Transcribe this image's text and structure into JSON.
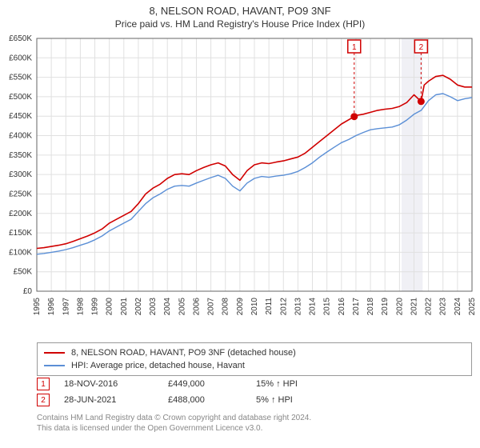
{
  "header": {
    "title": "8, NELSON ROAD, HAVANT, PO9 3NF",
    "subtitle": "Price paid vs. HM Land Registry's House Price Index (HPI)"
  },
  "chart": {
    "type": "line",
    "plot_background": "#ffffff",
    "grid_color": "#e0e0e0",
    "axis_color": "#666666",
    "tick_fontsize": 10,
    "tick_color": "#333333",
    "y": {
      "min": 0,
      "max": 650000,
      "step": 50000,
      "labels": [
        "£0",
        "£50K",
        "£100K",
        "£150K",
        "£200K",
        "£250K",
        "£300K",
        "£350K",
        "£400K",
        "£450K",
        "£500K",
        "£550K",
        "£600K",
        "£650K"
      ]
    },
    "x": {
      "min": 1995,
      "max": 2025,
      "labels": [
        "1995",
        "1996",
        "1997",
        "1998",
        "1999",
        "2000",
        "2001",
        "2002",
        "2003",
        "2004",
        "2005",
        "2006",
        "2007",
        "2008",
        "2009",
        "2010",
        "2011",
        "2012",
        "2013",
        "2014",
        "2015",
        "2016",
        "2017",
        "2018",
        "2019",
        "2020",
        "2021",
        "2022",
        "2023",
        "2024",
        "2025"
      ]
    },
    "series": [
      {
        "label": "8, NELSON ROAD, HAVANT, PO9 3NF (detached house)",
        "color": "#d00000",
        "width": 1.6,
        "points": [
          [
            1995.0,
            110000
          ],
          [
            1995.5,
            112000
          ],
          [
            1996.0,
            115000
          ],
          [
            1996.5,
            118000
          ],
          [
            1997.0,
            122000
          ],
          [
            1997.5,
            128000
          ],
          [
            1998.0,
            135000
          ],
          [
            1998.5,
            142000
          ],
          [
            1999.0,
            150000
          ],
          [
            1999.5,
            160000
          ],
          [
            2000.0,
            175000
          ],
          [
            2000.5,
            185000
          ],
          [
            2001.0,
            195000
          ],
          [
            2001.5,
            205000
          ],
          [
            2002.0,
            225000
          ],
          [
            2002.5,
            250000
          ],
          [
            2003.0,
            265000
          ],
          [
            2003.5,
            275000
          ],
          [
            2004.0,
            290000
          ],
          [
            2004.5,
            300000
          ],
          [
            2005.0,
            302000
          ],
          [
            2005.5,
            300000
          ],
          [
            2006.0,
            310000
          ],
          [
            2006.5,
            318000
          ],
          [
            2007.0,
            325000
          ],
          [
            2007.5,
            330000
          ],
          [
            2008.0,
            322000
          ],
          [
            2008.5,
            300000
          ],
          [
            2009.0,
            285000
          ],
          [
            2009.5,
            310000
          ],
          [
            2010.0,
            325000
          ],
          [
            2010.5,
            330000
          ],
          [
            2011.0,
            328000
          ],
          [
            2011.5,
            332000
          ],
          [
            2012.0,
            335000
          ],
          [
            2012.5,
            340000
          ],
          [
            2013.0,
            345000
          ],
          [
            2013.5,
            355000
          ],
          [
            2014.0,
            370000
          ],
          [
            2014.5,
            385000
          ],
          [
            2015.0,
            400000
          ],
          [
            2015.5,
            415000
          ],
          [
            2016.0,
            430000
          ],
          [
            2016.88,
            449000
          ],
          [
            2017.0,
            452000
          ],
          [
            2017.5,
            455000
          ],
          [
            2018.0,
            460000
          ],
          [
            2018.5,
            465000
          ],
          [
            2019.0,
            468000
          ],
          [
            2019.5,
            470000
          ],
          [
            2020.0,
            475000
          ],
          [
            2020.5,
            485000
          ],
          [
            2021.0,
            505000
          ],
          [
            2021.49,
            488000
          ],
          [
            2021.7,
            530000
          ],
          [
            2022.0,
            540000
          ],
          [
            2022.5,
            552000
          ],
          [
            2023.0,
            555000
          ],
          [
            2023.5,
            545000
          ],
          [
            2024.0,
            530000
          ],
          [
            2024.5,
            525000
          ],
          [
            2025.0,
            525000
          ]
        ]
      },
      {
        "label": "HPI: Average price, detached house, Havant",
        "color": "#5b8fd6",
        "width": 1.4,
        "points": [
          [
            1995.0,
            95000
          ],
          [
            1995.5,
            97000
          ],
          [
            1996.0,
            100000
          ],
          [
            1996.5,
            103000
          ],
          [
            1997.0,
            107000
          ],
          [
            1997.5,
            112000
          ],
          [
            1998.0,
            118000
          ],
          [
            1998.5,
            124000
          ],
          [
            1999.0,
            132000
          ],
          [
            1999.5,
            142000
          ],
          [
            2000.0,
            155000
          ],
          [
            2000.5,
            165000
          ],
          [
            2001.0,
            175000
          ],
          [
            2001.5,
            185000
          ],
          [
            2002.0,
            205000
          ],
          [
            2002.5,
            225000
          ],
          [
            2003.0,
            240000
          ],
          [
            2003.5,
            250000
          ],
          [
            2004.0,
            262000
          ],
          [
            2004.5,
            270000
          ],
          [
            2005.0,
            272000
          ],
          [
            2005.5,
            270000
          ],
          [
            2006.0,
            278000
          ],
          [
            2006.5,
            285000
          ],
          [
            2007.0,
            292000
          ],
          [
            2007.5,
            298000
          ],
          [
            2008.0,
            290000
          ],
          [
            2008.5,
            270000
          ],
          [
            2009.0,
            258000
          ],
          [
            2009.5,
            278000
          ],
          [
            2010.0,
            290000
          ],
          [
            2010.5,
            295000
          ],
          [
            2011.0,
            293000
          ],
          [
            2011.5,
            296000
          ],
          [
            2012.0,
            298000
          ],
          [
            2012.5,
            302000
          ],
          [
            2013.0,
            308000
          ],
          [
            2013.5,
            318000
          ],
          [
            2014.0,
            330000
          ],
          [
            2014.5,
            345000
          ],
          [
            2015.0,
            358000
          ],
          [
            2015.5,
            370000
          ],
          [
            2016.0,
            382000
          ],
          [
            2016.5,
            390000
          ],
          [
            2017.0,
            400000
          ],
          [
            2017.5,
            408000
          ],
          [
            2018.0,
            415000
          ],
          [
            2018.5,
            418000
          ],
          [
            2019.0,
            420000
          ],
          [
            2019.5,
            422000
          ],
          [
            2020.0,
            428000
          ],
          [
            2020.5,
            440000
          ],
          [
            2021.0,
            455000
          ],
          [
            2021.5,
            465000
          ],
          [
            2022.0,
            490000
          ],
          [
            2022.5,
            505000
          ],
          [
            2023.0,
            508000
          ],
          [
            2023.5,
            500000
          ],
          [
            2024.0,
            490000
          ],
          [
            2024.5,
            495000
          ],
          [
            2025.0,
            498000
          ]
        ]
      }
    ],
    "sale_markers": [
      {
        "n": "1",
        "x": 2016.88,
        "y": 449000,
        "dot_color": "#d00000",
        "box_color": "#d00000"
      },
      {
        "n": "2",
        "x": 2021.49,
        "y": 488000,
        "dot_color": "#d00000",
        "box_color": "#d00000"
      }
    ],
    "sale_band": {
      "from": 2020.15,
      "to": 2021.6,
      "fill": "#f0f0f5"
    }
  },
  "legend": {
    "series1_label": "8, NELSON ROAD, HAVANT, PO9 3NF (detached house)",
    "series1_color": "#d00000",
    "series2_label": "HPI: Average price, detached house, Havant",
    "series2_color": "#5b8fd6"
  },
  "sales": [
    {
      "n": "1",
      "date": "18-NOV-2016",
      "price": "£449,000",
      "delta": "15% ↑ HPI"
    },
    {
      "n": "2",
      "date": "28-JUN-2021",
      "price": "£488,000",
      "delta": "5% ↑ HPI"
    }
  ],
  "license": {
    "line1": "Contains HM Land Registry data © Crown copyright and database right 2024.",
    "line2": "This data is licensed under the Open Government Licence v3.0."
  }
}
